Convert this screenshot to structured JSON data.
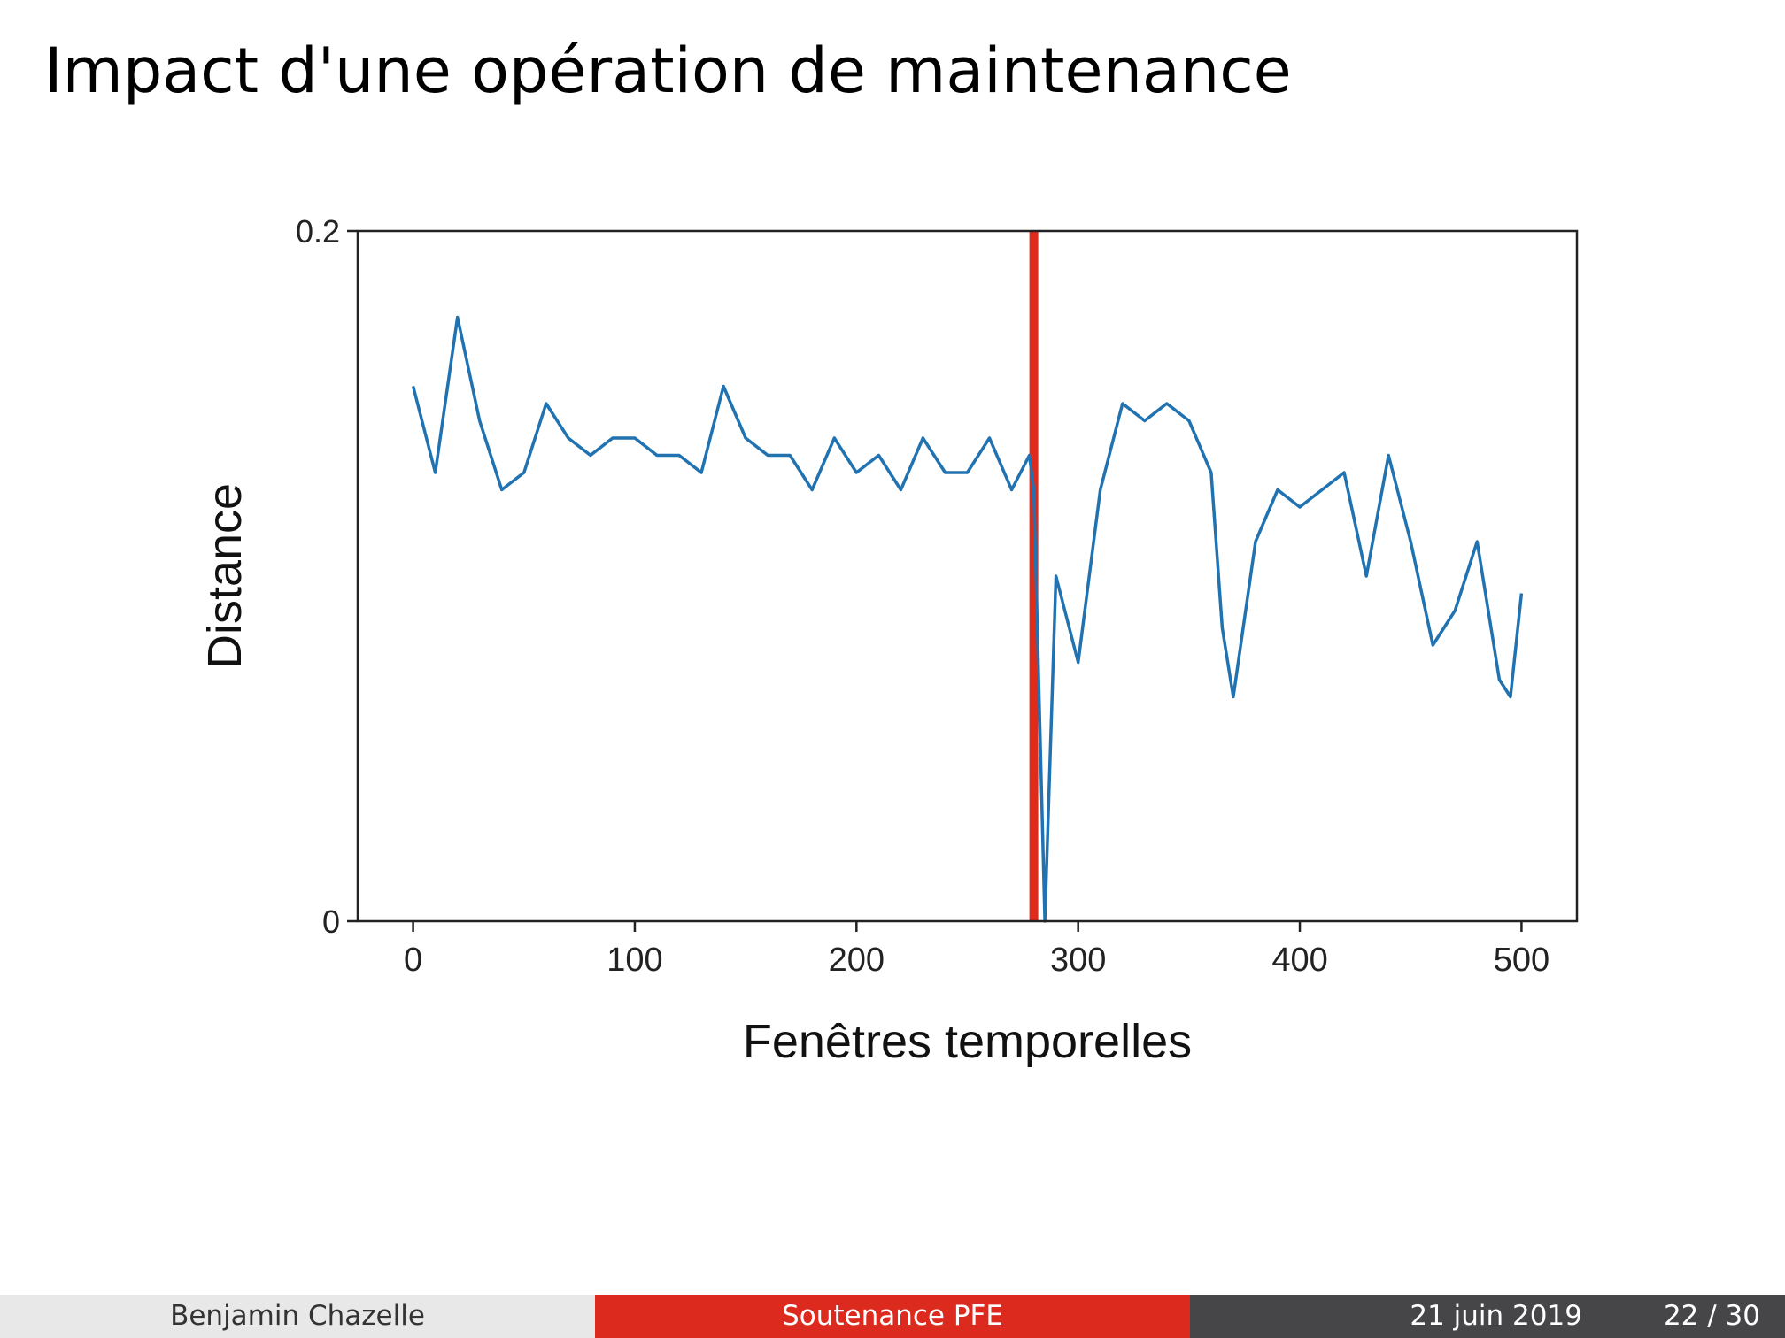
{
  "slide": {
    "title": "Impact d'une opération de maintenance"
  },
  "footer": {
    "author": "Benjamin Chazelle",
    "event": "Soutenance PFE",
    "date": "21 juin 2019",
    "page": "22 / 30"
  },
  "chart_data": {
    "type": "line",
    "title": "",
    "xlabel": "Fenêtres temporelles",
    "ylabel": "Distance",
    "xlim": [
      -25,
      525
    ],
    "ylim": [
      0,
      0.2
    ],
    "xticks": [
      0,
      100,
      200,
      300,
      400,
      500
    ],
    "yticks": [
      0,
      0.2
    ],
    "ytick_labels": [
      "0",
      "0.2"
    ],
    "grid": false,
    "legend": "none",
    "colors": {
      "line": "#2172b0",
      "marker_line": "#e02a1c",
      "axes": "#222222"
    },
    "vertical_marker": {
      "x": 280,
      "label": ""
    },
    "series": [
      {
        "x": [
          0,
          10,
          20,
          30,
          40,
          50,
          60,
          70,
          80,
          90,
          100,
          110,
          120,
          130,
          140,
          150,
          160,
          170,
          180,
          190,
          200,
          210,
          220,
          230,
          240,
          250,
          260,
          270,
          278,
          280,
          285,
          290,
          300,
          310,
          320,
          330,
          340,
          350,
          360,
          365,
          370,
          380,
          390,
          400,
          410,
          420,
          430,
          440,
          450,
          460,
          470,
          480,
          490,
          495,
          500
        ],
        "values": [
          0.155,
          0.13,
          0.175,
          0.145,
          0.125,
          0.13,
          0.15,
          0.14,
          0.135,
          0.14,
          0.14,
          0.135,
          0.135,
          0.13,
          0.155,
          0.14,
          0.135,
          0.135,
          0.125,
          0.14,
          0.13,
          0.135,
          0.125,
          0.14,
          0.13,
          0.13,
          0.14,
          0.125,
          0.135,
          0.125,
          0.0,
          0.1,
          0.075,
          0.125,
          0.15,
          0.145,
          0.15,
          0.145,
          0.13,
          0.085,
          0.065,
          0.11,
          0.125,
          0.12,
          0.125,
          0.13,
          0.1,
          0.135,
          0.11,
          0.08,
          0.09,
          0.11,
          0.07,
          0.065,
          0.095
        ]
      }
    ]
  }
}
